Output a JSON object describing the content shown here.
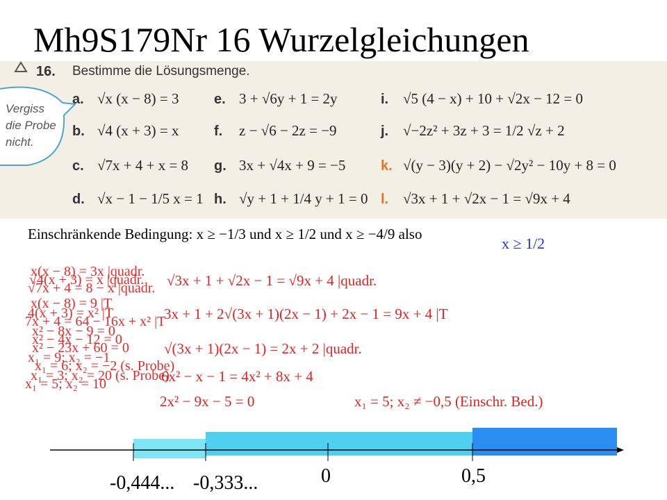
{
  "title": "Mh9S179Nr 16 Wurzelgleichungen",
  "exercise": {
    "number": "16.",
    "instruction": "Bestimme die Lösungsmenge.",
    "note": [
      "Vergiss",
      "die Probe",
      "nicht."
    ],
    "items": [
      {
        "letter": "a.",
        "equation": "√x (x − 8) = 3"
      },
      {
        "letter": "b.",
        "equation": "√4 (x + 3) = x"
      },
      {
        "letter": "c.",
        "equation": "√7x + 4 + x = 8"
      },
      {
        "letter": "d.",
        "equation": "√x − 1 − 1/5 x = 1"
      },
      {
        "letter": "e.",
        "equation": "3 + √6y + 1 = 2y"
      },
      {
        "letter": "f.",
        "equation": "z − √6 − 2z = −9"
      },
      {
        "letter": "g.",
        "equation": "3x + √4x + 9 = −5"
      },
      {
        "letter": "h.",
        "equation": "√y + 1 + 1/4 y + 1 = 0"
      },
      {
        "letter": "i.",
        "equation": "√5 (4 − x) + 10 + √2x − 12 = 0"
      },
      {
        "letter": "j.",
        "equation": "√−2z² + 3z + 3 = 1/2 √z + 2"
      },
      {
        "letter": "k.",
        "equation": "√(y − 3)(y + 2) − √2y² − 10y + 8 = 0"
      },
      {
        "letter": "l.",
        "equation": "√3x + 1 + √2x − 1 = √9x + 4"
      }
    ]
  },
  "condition": {
    "text": "Einschränkende Bedingung: x ≥ −1/3 und x ≥ 1/2 und x ≥ −4/9 also",
    "result": "x ≥ 1/2"
  },
  "solution": [
    "√3x + 1 + √2x − 1 = √9x + 4  |quadr.",
    "3x + 1 + 2√(3x + 1)(2x − 1) + 2x − 1 = 9x + 4  |T",
    "√(3x + 1)(2x − 1) = 2x + 2  |quadr.",
    "6x² − x − 1 = 4x² + 8x + 4",
    "2x² − 9x − 5 = 0",
    "x₁ = 5; x₂ ≠ −0,5 (Einschr. Bed.)"
  ],
  "earlier_work": [
    "x(x − 8) = 3x |quadr.",
    "√4(x + 3) = x |quadr.",
    "√7x + 4 = 8 − x |quadr.",
    "x(x − 8) = 9 |T",
    "4(x + 3) = x² |T",
    "7x + 4 = 64 − 16x + x² |T",
    "x² − 8x − 9 = 0",
    "x² − 4x − 12 = 0",
    "x² − 23x + 60 = 0",
    "x₁ = 9; x₂ = −1",
    "x₁ = 6; x₂ = −2 (s. Probe)",
    "x₁ = 3; x₂ = 20 (s. Probe)",
    "x₁ = 5; x₂ = 10"
  ],
  "number_line": [
    "-0,444...",
    "-0,333...",
    "0",
    "0,5"
  ]
}
